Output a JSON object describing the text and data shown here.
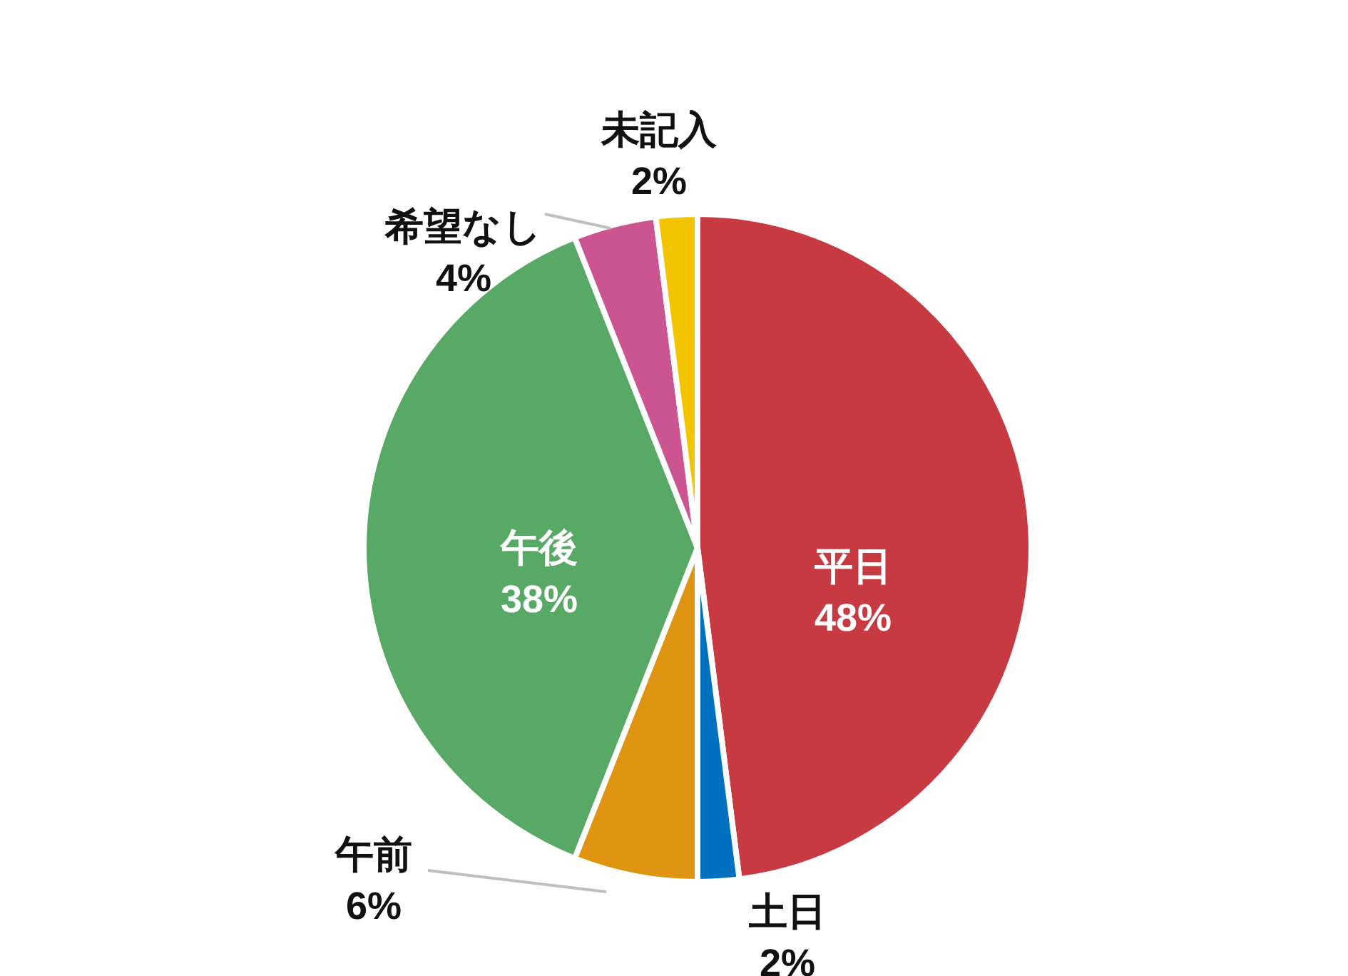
{
  "chart_data": {
    "type": "pie",
    "categories": [
      "平日",
      "土日",
      "午前",
      "午後",
      "希望なし",
      "未記入"
    ],
    "values": [
      48,
      2,
      6,
      38,
      4,
      2
    ],
    "value_labels": [
      "48%",
      "2%",
      "6%",
      "38%",
      "4%",
      "2%"
    ],
    "colors": [
      "#c83a41",
      "#0070c0",
      "#df9512",
      "#58a866",
      "#cc5490",
      "#f2c500"
    ]
  }
}
